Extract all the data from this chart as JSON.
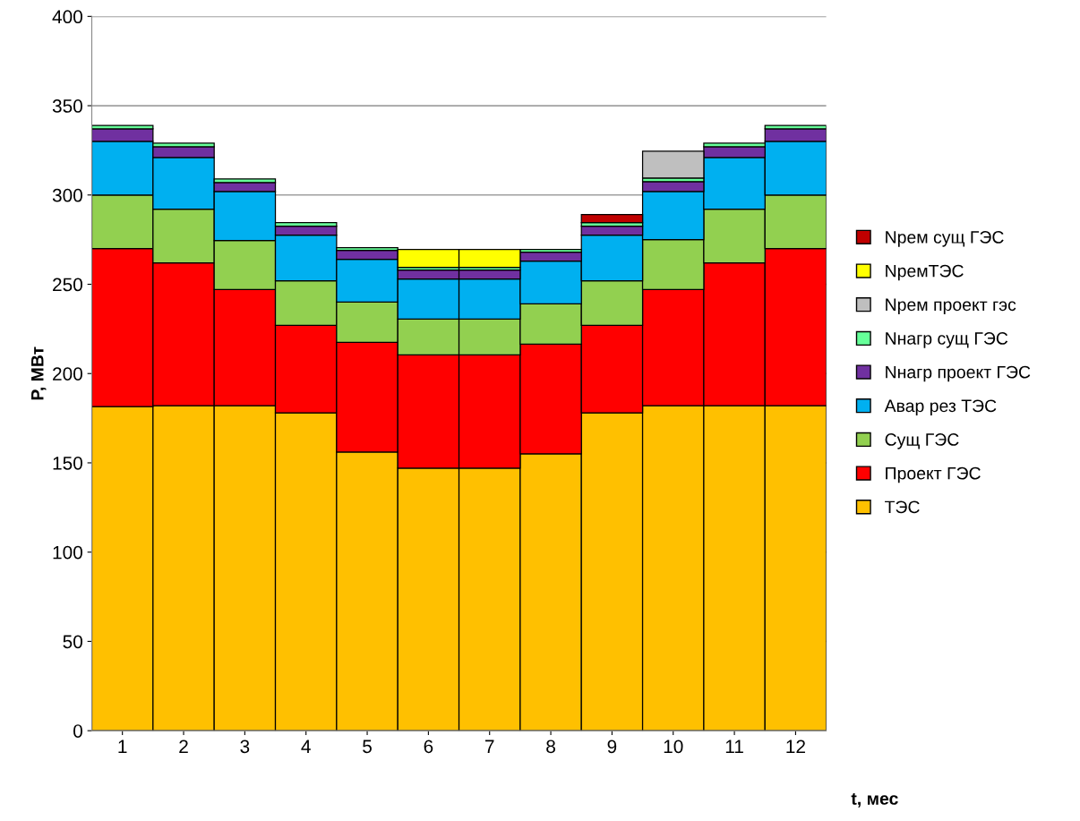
{
  "chart_data": {
    "type": "bar",
    "stacked": true,
    "xlabel": "t, мес",
    "ylabel": "P, МВт",
    "categories": [
      "1",
      "2",
      "3",
      "4",
      "5",
      "6",
      "7",
      "8",
      "9",
      "10",
      "11",
      "12"
    ],
    "series": [
      {
        "name": "ТЭС",
        "color": "#ffc000",
        "values": [
          181.5,
          182,
          182,
          178,
          156,
          147,
          147,
          155,
          178,
          182,
          182,
          182
        ]
      },
      {
        "name": "Проект ГЭС",
        "color": "#ff0000",
        "values": [
          88.5,
          80,
          65,
          49,
          61.5,
          63.5,
          63.5,
          61.5,
          49,
          65,
          80,
          88
        ]
      },
      {
        "name": "Сущ ГЭС",
        "color": "#92d050",
        "values": [
          30,
          30,
          27.5,
          25,
          22.5,
          20,
          20,
          22.5,
          25,
          28,
          30,
          30
        ]
      },
      {
        "name": "Авар рез ТЭС",
        "color": "#00b0f0",
        "values": [
          30,
          29,
          27.5,
          25.5,
          24,
          22.5,
          22.5,
          24,
          25.5,
          27,
          29,
          30
        ]
      },
      {
        "name": "Nнагр проект ГЭС",
        "color": "#7030a0",
        "values": [
          7,
          6,
          5,
          5,
          5,
          5,
          5,
          5,
          5,
          5.5,
          6,
          7
        ]
      },
      {
        "name": "Nнагр сущ ГЭС",
        "color": "#66ff99",
        "values": [
          2,
          2,
          2,
          2,
          1.5,
          1.5,
          1.5,
          1.5,
          2,
          2,
          2,
          2
        ]
      },
      {
        "name": "Nрем проект гэс",
        "color": "#bfbfbf",
        "values": [
          null,
          null,
          null,
          null,
          null,
          null,
          null,
          null,
          null,
          15,
          null,
          null
        ]
      },
      {
        "name": "NремТЭС",
        "color": "#ffff00",
        "values": [
          null,
          null,
          null,
          null,
          null,
          10,
          10,
          null,
          null,
          null,
          null,
          null
        ]
      },
      {
        "name": "Nрем сущ ГЭС",
        "color": "#c00000",
        "values": [
          null,
          null,
          null,
          null,
          null,
          null,
          null,
          null,
          4.5,
          null,
          null,
          null
        ]
      }
    ],
    "ylim": [
      0,
      400
    ],
    "yticks": [
      0,
      50,
      100,
      150,
      200,
      250,
      300,
      350,
      400
    ],
    "grid": "y",
    "legend": "right"
  }
}
